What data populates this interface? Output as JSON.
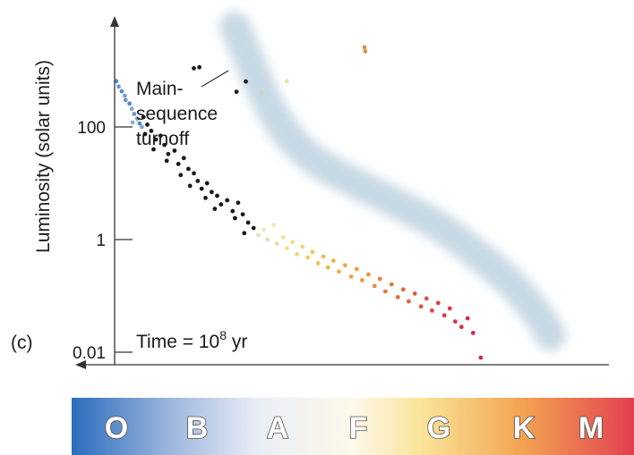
{
  "chart_data": {
    "type": "scatter",
    "title": "",
    "panel_label": "(c)",
    "ylabel": "Luminosity (solar units)",
    "y_scale": "log",
    "y_ticks": [
      {
        "value": 100,
        "label": "100"
      },
      {
        "value": 1,
        "label": "1"
      },
      {
        "value": 0.01,
        "label": "0.01"
      }
    ],
    "x_axis": {
      "quantity": "spectral class",
      "direction": "decreasing temperature to the right",
      "classes": [
        "O",
        "B",
        "A",
        "F",
        "G",
        "K",
        "M"
      ],
      "class_colors": [
        "#2f6fc0",
        "#9fb7dd",
        "#eef0f6",
        "#fbf6e6",
        "#f8e08a",
        "#f5a553",
        "#e24a56"
      ]
    },
    "annotations": {
      "turnoff_line1": "Main-",
      "turnoff_line2": "sequence",
      "turnoff_line3": "turnoff",
      "time_prefix": "Time = 10",
      "time_exponent": "8",
      "time_suffix": " yr"
    },
    "main_sequence_band_color": "#b8cfdd",
    "series": [
      {
        "marker_color": "mixed",
        "points": [
          {
            "cls": 1.35,
            "L": 650,
            "c": "#5b87c4"
          },
          {
            "cls": 1.38,
            "L": 520,
            "c": "#6f95cc"
          },
          {
            "cls": 1.42,
            "L": 430,
            "c": "#5b87c4"
          },
          {
            "cls": 1.46,
            "L": 360,
            "c": "#7ba0d2"
          },
          {
            "cls": 1.47,
            "L": 300,
            "c": "#6f95cc"
          },
          {
            "cls": 1.52,
            "L": 260,
            "c": "#5b87c4"
          },
          {
            "cls": 1.55,
            "L": 210,
            "c": "#86a8d6"
          },
          {
            "cls": 1.58,
            "L": 170,
            "c": "#6f95cc"
          },
          {
            "cls": 1.62,
            "L": 140,
            "c": "#7ba0d2"
          },
          {
            "cls": 1.56,
            "L": 120,
            "c": "#8daed9"
          },
          {
            "cls": 1.65,
            "L": 115,
            "c": "#5b87c4"
          },
          {
            "cls": 1.68,
            "L": 100,
            "c": "#86a8d6"
          },
          {
            "cls": 1.7,
            "L": 150,
            "c": "#1a1a1a"
          },
          {
            "cls": 1.75,
            "L": 110,
            "c": "#1a1a1a"
          },
          {
            "cls": 1.8,
            "L": 85,
            "c": "#1a1a1a"
          },
          {
            "cls": 1.72,
            "L": 75,
            "c": "#1a1a1a"
          },
          {
            "cls": 1.86,
            "L": 60,
            "c": "#1a1a1a"
          },
          {
            "cls": 1.92,
            "L": 70,
            "c": "#1a1a1a"
          },
          {
            "cls": 1.97,
            "L": 48,
            "c": "#1a1a1a"
          },
          {
            "cls": 1.83,
            "L": 40,
            "c": "#1a1a1a"
          },
          {
            "cls": 2.02,
            "L": 33,
            "c": "#1a1a1a"
          },
          {
            "cls": 2.1,
            "L": 38,
            "c": "#1a1a1a"
          },
          {
            "cls": 2.0,
            "L": 25,
            "c": "#1a1a1a"
          },
          {
            "cls": 2.15,
            "L": 22,
            "c": "#1a1a1a"
          },
          {
            "cls": 2.22,
            "L": 28,
            "c": "#1a1a1a"
          },
          {
            "cls": 2.28,
            "L": 18,
            "c": "#1a1a1a"
          },
          {
            "cls": 2.18,
            "L": 14,
            "c": "#1a1a1a"
          },
          {
            "cls": 2.35,
            "L": 15,
            "c": "#1a1a1a"
          },
          {
            "cls": 2.4,
            "L": 11,
            "c": "#1a1a1a"
          },
          {
            "cls": 2.3,
            "L": 9,
            "c": "#1a1a1a"
          },
          {
            "cls": 2.45,
            "L": 8,
            "c": "#1a1a1a"
          },
          {
            "cls": 2.52,
            "L": 10,
            "c": "#1a1a1a"
          },
          {
            "cls": 2.58,
            "L": 7,
            "c": "#1a1a1a"
          },
          {
            "cls": 2.5,
            "L": 5.5,
            "c": "#1a1a1a"
          },
          {
            "cls": 2.65,
            "L": 6,
            "c": "#1a1a1a"
          },
          {
            "cls": 2.7,
            "L": 4.2,
            "c": "#1a1a1a"
          },
          {
            "cls": 2.62,
            "L": 3.5,
            "c": "#1a1a1a"
          },
          {
            "cls": 2.78,
            "L": 5,
            "c": "#1a1a1a"
          },
          {
            "cls": 2.85,
            "L": 3.2,
            "c": "#1a1a1a"
          },
          {
            "cls": 2.92,
            "L": 4.5,
            "c": "#1a1a1a"
          },
          {
            "cls": 2.88,
            "L": 2.4,
            "c": "#1a1a1a"
          },
          {
            "cls": 2.98,
            "L": 2.8,
            "c": "#1a1a1a"
          },
          {
            "cls": 3.05,
            "L": 2.0,
            "c": "#1a1a1a"
          },
          {
            "cls": 3.12,
            "L": 1.6,
            "c": "#1a1a1a"
          },
          {
            "cls": 3.0,
            "L": 1.3,
            "c": "#1a1a1a"
          },
          {
            "cls": 3.18,
            "L": 1.2,
            "c": "#e8e2c8"
          },
          {
            "cls": 3.25,
            "L": 1.5,
            "c": "#f0e8c6"
          },
          {
            "cls": 3.3,
            "L": 1.0,
            "c": "#e6dcb8"
          },
          {
            "cls": 3.38,
            "L": 1.8,
            "c": "#f1e6b9"
          },
          {
            "cls": 3.42,
            "L": 0.85,
            "c": "#eadca9"
          },
          {
            "cls": 3.5,
            "L": 1.1,
            "c": "#f3e3a0"
          },
          {
            "cls": 3.55,
            "L": 0.7,
            "c": "#f2dd8c"
          },
          {
            "cls": 3.62,
            "L": 0.9,
            "c": "#f4dc84"
          },
          {
            "cls": 3.68,
            "L": 0.55,
            "c": "#f2d77a"
          },
          {
            "cls": 3.75,
            "L": 0.75,
            "c": "#f3d470"
          },
          {
            "cls": 3.82,
            "L": 0.48,
            "c": "#f1cd67"
          },
          {
            "cls": 3.88,
            "L": 0.6,
            "c": "#f0c85e"
          },
          {
            "cls": 3.95,
            "L": 0.38,
            "c": "#efc25a"
          },
          {
            "cls": 4.02,
            "L": 0.5,
            "c": "#eebd55"
          },
          {
            "cls": 4.08,
            "L": 0.32,
            "c": "#f0b852"
          },
          {
            "cls": 4.15,
            "L": 0.42,
            "c": "#eeb24f"
          },
          {
            "cls": 4.22,
            "L": 0.27,
            "c": "#efae4d"
          },
          {
            "cls": 4.3,
            "L": 0.35,
            "c": "#eda84a"
          },
          {
            "cls": 4.38,
            "L": 0.22,
            "c": "#eea247"
          },
          {
            "cls": 4.45,
            "L": 0.3,
            "c": "#ec9c45"
          },
          {
            "cls": 4.52,
            "L": 0.19,
            "c": "#ec9643"
          },
          {
            "cls": 4.6,
            "L": 0.24,
            "c": "#eb9041"
          },
          {
            "cls": 4.68,
            "L": 0.15,
            "c": "#ea8a40"
          },
          {
            "cls": 4.75,
            "L": 0.2,
            "c": "#e9833e"
          },
          {
            "cls": 4.82,
            "L": 0.12,
            "c": "#e87c3c"
          },
          {
            "cls": 4.9,
            "L": 0.16,
            "c": "#e7743b"
          },
          {
            "cls": 4.98,
            "L": 0.095,
            "c": "#e56c3a"
          },
          {
            "cls": 5.05,
            "L": 0.13,
            "c": "#e4663a"
          },
          {
            "cls": 5.12,
            "L": 0.08,
            "c": "#e35e3b"
          },
          {
            "cls": 5.2,
            "L": 0.11,
            "c": "#e2583c"
          },
          {
            "cls": 5.28,
            "L": 0.065,
            "c": "#e0503e"
          },
          {
            "cls": 5.35,
            "L": 0.09,
            "c": "#df4a40"
          },
          {
            "cls": 5.42,
            "L": 0.055,
            "c": "#de4442"
          },
          {
            "cls": 5.5,
            "L": 0.075,
            "c": "#dd3f44"
          },
          {
            "cls": 5.58,
            "L": 0.045,
            "c": "#dc3a46"
          },
          {
            "cls": 5.65,
            "L": 0.06,
            "c": "#db3648"
          },
          {
            "cls": 5.72,
            "L": 0.035,
            "c": "#da3249"
          },
          {
            "cls": 5.8,
            "L": 0.028,
            "c": "#d92f4a"
          },
          {
            "cls": 5.88,
            "L": 0.04,
            "c": "#d82c4b"
          },
          {
            "cls": 5.95,
            "L": 0.022,
            "c": "#d62a4c"
          },
          {
            "cls": 6.05,
            "L": 0.008,
            "c": "#d4284d"
          },
          {
            "cls": 2.35,
            "L": 1100,
            "c": "#1a1a1a"
          },
          {
            "cls": 2.42,
            "L": 1150,
            "c": "#1a1a1a"
          },
          {
            "cls": 2.9,
            "L": 420,
            "c": "#1a1a1a"
          },
          {
            "cls": 3.02,
            "L": 640,
            "c": "#1a1a1a"
          },
          {
            "cls": 3.22,
            "L": 400,
            "c": "#d9d0b0"
          },
          {
            "cls": 3.55,
            "L": 650,
            "c": "#efe0a6"
          },
          {
            "cls": 4.55,
            "L": 2600,
            "c": "#d89048"
          },
          {
            "cls": 4.56,
            "L": 2200,
            "c": "#d89048"
          }
        ]
      }
    ]
  }
}
